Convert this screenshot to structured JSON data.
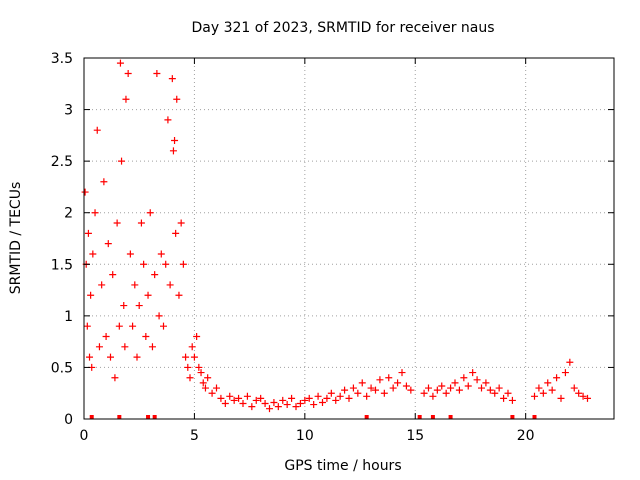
{
  "chart_data": {
    "type": "scatter",
    "title": "Day 321 of 2023, SRMTID for receiver naus",
    "xlabel": "GPS time / hours",
    "ylabel": "SRMTID / TECUs",
    "xlim": [
      0,
      24
    ],
    "ylim": [
      0,
      3.5
    ],
    "x_ticks": [
      0,
      5,
      10,
      15,
      20
    ],
    "x_tick_labels": [
      "0",
      "5",
      "10",
      "15",
      "20"
    ],
    "y_ticks": [
      0,
      0.5,
      1,
      1.5,
      2,
      2.5,
      3,
      3.5
    ],
    "y_tick_labels": [
      "0",
      "0.5",
      "1",
      "1.5",
      "2",
      "2.5",
      "3",
      "3.5"
    ],
    "grid": true,
    "marker": "plus",
    "series": [
      {
        "name": "SRMTID",
        "color": "#ff0000",
        "x": [
          0.05,
          0.1,
          0.15,
          0.2,
          0.25,
          0.3,
          0.35,
          0.4,
          0.5,
          0.6,
          0.7,
          0.8,
          0.9,
          1.0,
          1.1,
          1.2,
          1.3,
          1.4,
          1.5,
          1.6,
          1.65,
          1.7,
          1.8,
          1.85,
          1.9,
          2.0,
          2.1,
          2.2,
          2.3,
          2.4,
          2.5,
          2.6,
          2.7,
          2.8,
          2.9,
          3.0,
          3.1,
          3.2,
          3.3,
          3.4,
          3.5,
          3.6,
          3.7,
          3.8,
          3.9,
          4.0,
          4.05,
          4.1,
          4.15,
          4.2,
          4.3,
          4.4,
          4.5,
          4.6,
          4.7,
          4.8,
          4.9,
          5.0,
          5.1,
          5.2,
          5.3,
          5.4,
          5.5,
          5.6,
          5.8,
          6.0,
          6.2,
          6.4,
          6.6,
          6.8,
          7.0,
          7.2,
          7.4,
          7.6,
          7.8,
          8.0,
          8.2,
          8.4,
          8.6,
          8.8,
          9.0,
          9.2,
          9.4,
          9.6,
          9.8,
          10.0,
          10.2,
          10.4,
          10.6,
          10.8,
          11.0,
          11.2,
          11.4,
          11.6,
          11.8,
          12.0,
          12.2,
          12.4,
          12.6,
          12.8,
          13.0,
          13.2,
          13.4,
          13.6,
          13.8,
          14.0,
          14.2,
          14.4,
          14.6,
          14.8,
          15.4,
          15.6,
          15.8,
          16.0,
          16.2,
          16.4,
          16.6,
          16.8,
          17.0,
          17.2,
          17.4,
          17.6,
          17.8,
          18.0,
          18.2,
          18.4,
          18.6,
          18.8,
          19.0,
          19.2,
          19.4,
          20.4,
          20.6,
          20.8,
          21.0,
          21.2,
          21.4,
          21.6,
          21.8,
          22.0,
          22.2,
          22.4,
          22.6,
          22.8
        ],
        "y": [
          2.2,
          1.5,
          0.9,
          1.8,
          0.6,
          1.2,
          0.5,
          1.6,
          2.0,
          2.8,
          0.7,
          1.3,
          2.3,
          0.8,
          1.7,
          0.6,
          1.4,
          0.4,
          1.9,
          0.9,
          3.45,
          2.5,
          1.1,
          0.7,
          3.1,
          3.35,
          1.6,
          0.9,
          1.3,
          0.6,
          1.1,
          1.9,
          1.5,
          0.8,
          1.2,
          2.0,
          0.7,
          1.4,
          3.35,
          1.0,
          1.6,
          0.9,
          1.5,
          2.9,
          1.3,
          3.3,
          2.6,
          2.7,
          1.8,
          3.1,
          1.2,
          1.9,
          1.5,
          0.6,
          0.5,
          0.4,
          0.7,
          0.6,
          0.8,
          0.5,
          0.45,
          0.35,
          0.3,
          0.4,
          0.25,
          0.3,
          0.2,
          0.15,
          0.22,
          0.18,
          0.2,
          0.15,
          0.22,
          0.12,
          0.18,
          0.2,
          0.15,
          0.1,
          0.16,
          0.12,
          0.18,
          0.14,
          0.2,
          0.12,
          0.15,
          0.18,
          0.2,
          0.14,
          0.22,
          0.16,
          0.2,
          0.25,
          0.18,
          0.22,
          0.28,
          0.2,
          0.3,
          0.25,
          0.35,
          0.22,
          0.3,
          0.28,
          0.38,
          0.25,
          0.4,
          0.3,
          0.35,
          0.45,
          0.32,
          0.28,
          0.25,
          0.3,
          0.22,
          0.28,
          0.32,
          0.25,
          0.3,
          0.35,
          0.28,
          0.4,
          0.32,
          0.45,
          0.38,
          0.3,
          0.35,
          0.28,
          0.25,
          0.3,
          0.2,
          0.25,
          0.18,
          0.22,
          0.3,
          0.25,
          0.35,
          0.28,
          0.4,
          0.2,
          0.45,
          0.55,
          0.3,
          0.25,
          0.22,
          0.2
        ]
      }
    ],
    "gap_markers_x": [
      0.35,
      1.6,
      2.9,
      3.2,
      12.8,
      15.2,
      15.8,
      16.6,
      19.4,
      20.4
    ]
  }
}
